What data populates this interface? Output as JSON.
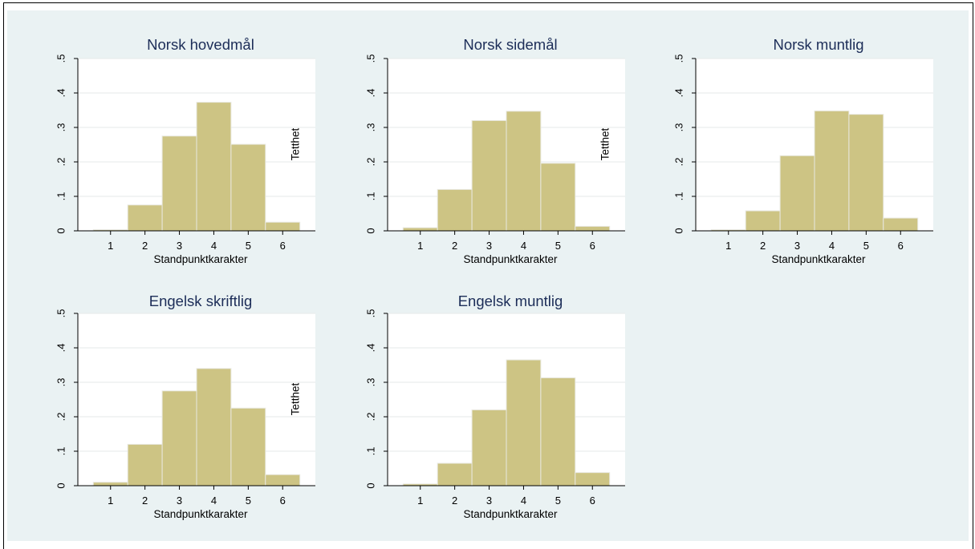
{
  "chart_data": [
    {
      "type": "bar",
      "title": "Norsk hovedmål",
      "xlabel": "Standpunktkarakter",
      "ylabel": "Tetthet",
      "categories": [
        "1",
        "2",
        "3",
        "4",
        "5",
        "6"
      ],
      "values": [
        0.003,
        0.075,
        0.275,
        0.373,
        0.251,
        0.025
      ],
      "y_ticks": [
        "0",
        ".1",
        ".2",
        ".3",
        ".4",
        ".5"
      ],
      "ylim": [
        0,
        0.5
      ],
      "grid": true
    },
    {
      "type": "bar",
      "title": "Norsk sidemål",
      "xlabel": "Standpunktkarakter",
      "ylabel": "Tetthet",
      "categories": [
        "1",
        "2",
        "3",
        "4",
        "5",
        "6"
      ],
      "values": [
        0.009,
        0.12,
        0.32,
        0.347,
        0.196,
        0.013
      ],
      "y_ticks": [
        "0",
        ".1",
        ".2",
        ".3",
        ".4",
        ".5"
      ],
      "ylim": [
        0,
        0.5
      ],
      "grid": true
    },
    {
      "type": "bar",
      "title": "Norsk muntlig",
      "xlabel": "Standpunktkarakter",
      "ylabel": "",
      "categories": [
        "1",
        "2",
        "3",
        "4",
        "5",
        "6"
      ],
      "values": [
        0.003,
        0.058,
        0.218,
        0.348,
        0.338,
        0.037
      ],
      "y_ticks": [
        "0",
        ".1",
        ".2",
        ".3",
        ".4",
        ".5"
      ],
      "ylim": [
        0,
        0.5
      ],
      "grid": true
    },
    {
      "type": "bar",
      "title": "Engelsk skriftlig",
      "xlabel": "Standpunktkarakter",
      "ylabel": "Tetthet",
      "categories": [
        "1",
        "2",
        "3",
        "4",
        "5",
        "6"
      ],
      "values": [
        0.01,
        0.12,
        0.275,
        0.34,
        0.225,
        0.032
      ],
      "y_ticks": [
        "0",
        ".1",
        ".2",
        ".3",
        ".4",
        ".5"
      ],
      "ylim": [
        0,
        0.5
      ],
      "grid": true
    },
    {
      "type": "bar",
      "title": "Engelsk muntlig",
      "xlabel": "Standpunktkarakter",
      "ylabel": "",
      "categories": [
        "1",
        "2",
        "3",
        "4",
        "5",
        "6"
      ],
      "values": [
        0.005,
        0.065,
        0.22,
        0.365,
        0.313,
        0.038
      ],
      "y_ticks": [
        "0",
        ".1",
        ".2",
        ".3",
        ".4",
        ".5"
      ],
      "ylim": [
        0,
        0.5
      ],
      "grid": true
    }
  ],
  "colors": {
    "bar_fill": "#cdc484",
    "bar_edge": "#e8e8e0",
    "title": "#1c2d58",
    "background": "#eaf2f3",
    "plot_region": "#ffffff"
  }
}
